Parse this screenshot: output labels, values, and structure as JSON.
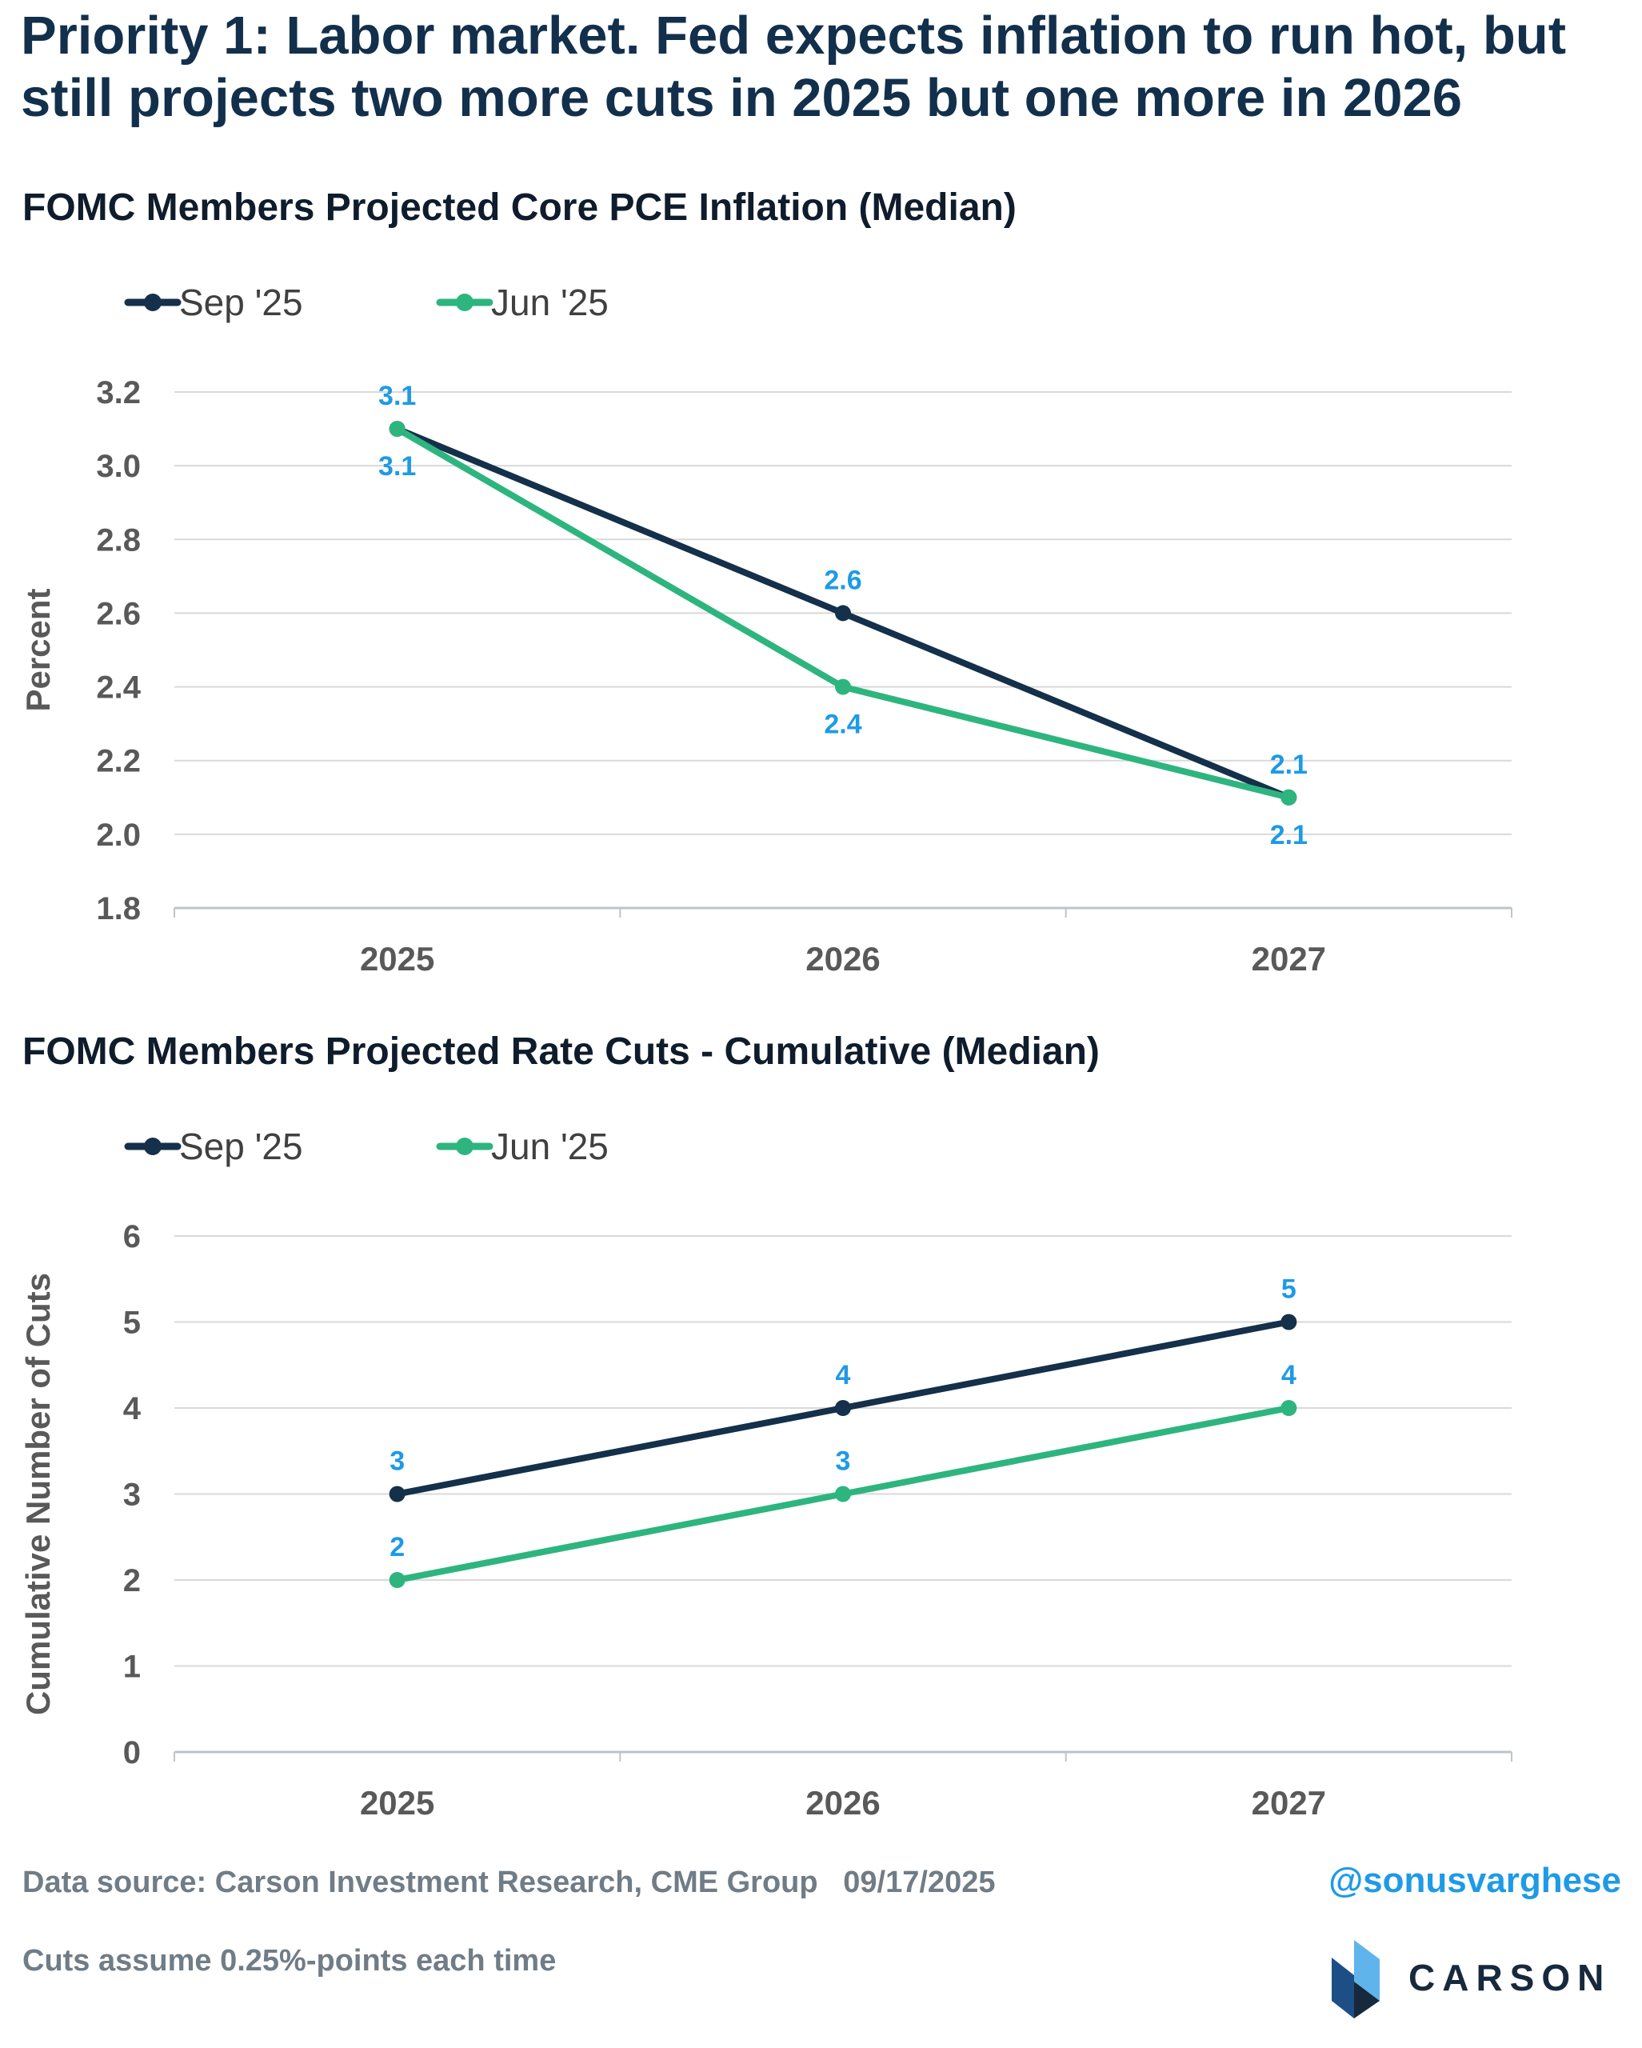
{
  "headline": "Priority 1: Labor market. Fed expects inflation to run hot, but still projects two more cuts in 2025 but one more in 2026",
  "charts": [
    {
      "title": "FOMC Members Projected Core PCE Inflation (Median)"
    },
    {
      "title": "FOMC Members Projected Rate Cuts - Cumulative (Median)"
    }
  ],
  "chart_data": [
    {
      "type": "line",
      "title": "FOMC Members Projected Core PCE Inflation (Median)",
      "xlabel": "",
      "ylabel": "Percent",
      "categories": [
        "2025",
        "2026",
        "2027"
      ],
      "ylim": [
        1.8,
        3.2
      ],
      "ytick_step": 0.2,
      "ytick_decimals": 1,
      "grid": true,
      "legend": "top-left",
      "series": [
        {
          "name": "Sep '25",
          "values": [
            3.1,
            2.6,
            2.1
          ],
          "color": "#14304a",
          "label_position": [
            "above",
            "above",
            "above"
          ]
        },
        {
          "name": "Jun '25",
          "values": [
            3.1,
            2.4,
            2.1
          ],
          "color": "#2eb57f",
          "label_position": [
            "below",
            "below",
            "below"
          ]
        }
      ],
      "data_label_color": "#1e9ae6"
    },
    {
      "type": "line",
      "title": "FOMC Members Projected Rate Cuts - Cumulative (Median)",
      "xlabel": "",
      "ylabel": "Cumulative Number of Cuts",
      "categories": [
        "2025",
        "2026",
        "2027"
      ],
      "ylim": [
        0,
        6
      ],
      "ytick_step": 1,
      "ytick_decimals": 0,
      "grid": true,
      "legend": "top-left",
      "series": [
        {
          "name": "Sep '25",
          "values": [
            3,
            4,
            5
          ],
          "color": "#14304a",
          "label_position": [
            "above",
            "above",
            "above"
          ]
        },
        {
          "name": "Jun '25",
          "values": [
            2,
            3,
            4
          ],
          "color": "#2eb57f",
          "label_position": [
            "above",
            "above",
            "above"
          ]
        }
      ],
      "data_label_color": "#1e9ae6"
    }
  ],
  "footer": {
    "source": "Data source: Carson Investment Research, CME Group   09/17/2025",
    "note": "Cuts assume 0.25%-points each time",
    "handle": "@sonusvarghese",
    "logo_text": "CARSON"
  }
}
